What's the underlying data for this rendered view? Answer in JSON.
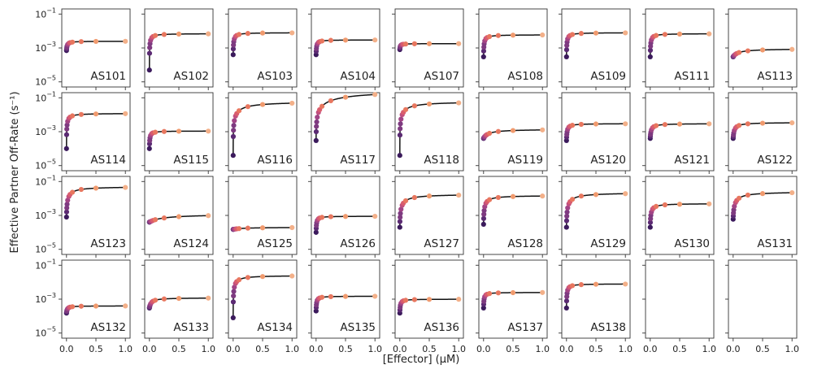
{
  "chart_data": {
    "type": "scatter",
    "layout": "small-multiples-grid",
    "grid": false,
    "xlabel": "[Effector] (μM)",
    "ylabel": "Effective Partner Off-Rate (s⁻¹)",
    "xlim": [
      -0.08,
      1.08
    ],
    "ylim": [
      5e-06,
      0.2
    ],
    "yscale": "log",
    "x_tick_labels": [
      "0.0",
      "0.5",
      "1.0"
    ],
    "x_ticks": [
      0,
      0.5,
      1
    ],
    "y_tick_labels": [
      {
        "base": "10",
        "exp": "−1",
        "value": 0.1
      },
      {
        "base": "10",
        "exp": "−3",
        "value": 0.001
      },
      {
        "base": "10",
        "exp": "−5",
        "value": 1e-05
      }
    ],
    "marker_colors": [
      "#3b1a5c",
      "#5b2a73",
      "#7e3a80",
      "#a14486",
      "#c04f7f",
      "#d95d6e",
      "#e8775f",
      "#f09a6e",
      "#f3b089"
    ],
    "x_points": [
      0,
      0.002,
      0.005,
      0.01,
      0.02,
      0.04,
      0.06,
      0.1,
      0.25,
      0.5,
      1.0
    ],
    "panels": [
      {
        "name": "AS101",
        "y0": 0.0007,
        "ymax": 0.0025,
        "k": 0.02
      },
      {
        "name": "AS102",
        "y0": 5e-05,
        "ymax": 0.007,
        "k": 0.03
      },
      {
        "name": "AS103",
        "y0": 0.0004,
        "ymax": 0.008,
        "k": 0.03
      },
      {
        "name": "AS104",
        "y0": 0.0004,
        "ymax": 0.003,
        "k": 0.02
      },
      {
        "name": "AS107",
        "y0": 0.0008,
        "ymax": 0.0018,
        "k": 0.01
      },
      {
        "name": "AS108",
        "y0": 0.0003,
        "ymax": 0.006,
        "k": 0.03
      },
      {
        "name": "AS109",
        "y0": 0.0003,
        "ymax": 0.008,
        "k": 0.03
      },
      {
        "name": "AS111",
        "y0": 0.0003,
        "ymax": 0.007,
        "k": 0.03
      },
      {
        "name": "AS113",
        "y0": 0.0003,
        "ymax": 0.0009,
        "k": 0.15
      },
      {
        "name": "AS114",
        "y0": 0.0001,
        "ymax": 0.012,
        "k": 0.04
      },
      {
        "name": "AS115",
        "y0": 0.0001,
        "ymax": 0.0011,
        "k": 0.02
      },
      {
        "name": "AS116",
        "y0": 4e-05,
        "ymax": 0.06,
        "k": 0.25
      },
      {
        "name": "AS117",
        "y0": 0.0003,
        "ymax": 0.28,
        "k": 0.8
      },
      {
        "name": "AS118",
        "y0": 4e-05,
        "ymax": 0.06,
        "k": 0.2
      },
      {
        "name": "AS119",
        "y0": 0.0004,
        "ymax": 0.0014,
        "k": 0.15
      },
      {
        "name": "AS120",
        "y0": 0.0003,
        "ymax": 0.003,
        "k": 0.03
      },
      {
        "name": "AS121",
        "y0": 0.0004,
        "ymax": 0.003,
        "k": 0.04
      },
      {
        "name": "AS122",
        "y0": 0.0004,
        "ymax": 0.0035,
        "k": 0.06
      },
      {
        "name": "AS123",
        "y0": 0.0008,
        "ymax": 0.05,
        "k": 0.12
      },
      {
        "name": "AS124",
        "y0": 0.0004,
        "ymax": 0.0012,
        "k": 0.4
      },
      {
        "name": "AS125",
        "y0": 0.00015,
        "ymax": 0.0002,
        "k": 0.2
      },
      {
        "name": "AS126",
        "y0": 0.0001,
        "ymax": 0.0009,
        "k": 0.02
      },
      {
        "name": "AS127",
        "y0": 0.0002,
        "ymax": 0.018,
        "k": 0.15
      },
      {
        "name": "AS128",
        "y0": 0.0003,
        "ymax": 0.015,
        "k": 0.08
      },
      {
        "name": "AS129",
        "y0": 0.0002,
        "ymax": 0.022,
        "k": 0.15
      },
      {
        "name": "AS130",
        "y0": 0.0002,
        "ymax": 0.005,
        "k": 0.05
      },
      {
        "name": "AS131",
        "y0": 0.0006,
        "ymax": 0.025,
        "k": 0.15
      },
      {
        "name": "AS132",
        "y0": 0.00015,
        "ymax": 0.0004,
        "k": 0.02
      },
      {
        "name": "AS133",
        "y0": 0.0003,
        "ymax": 0.0012,
        "k": 0.06
      },
      {
        "name": "AS134",
        "y0": 8e-05,
        "ymax": 0.025,
        "k": 0.08
      },
      {
        "name": "AS135",
        "y0": 0.0002,
        "ymax": 0.0015,
        "k": 0.02
      },
      {
        "name": "AS136",
        "y0": 0.00015,
        "ymax": 0.001,
        "k": 0.02
      },
      {
        "name": "AS137",
        "y0": 0.0003,
        "ymax": 0.0025,
        "k": 0.02
      },
      {
        "name": "AS138",
        "y0": 0.0003,
        "ymax": 0.008,
        "k": 0.03
      },
      {
        "name": "",
        "empty": true
      },
      {
        "name": "",
        "empty": true
      }
    ]
  }
}
